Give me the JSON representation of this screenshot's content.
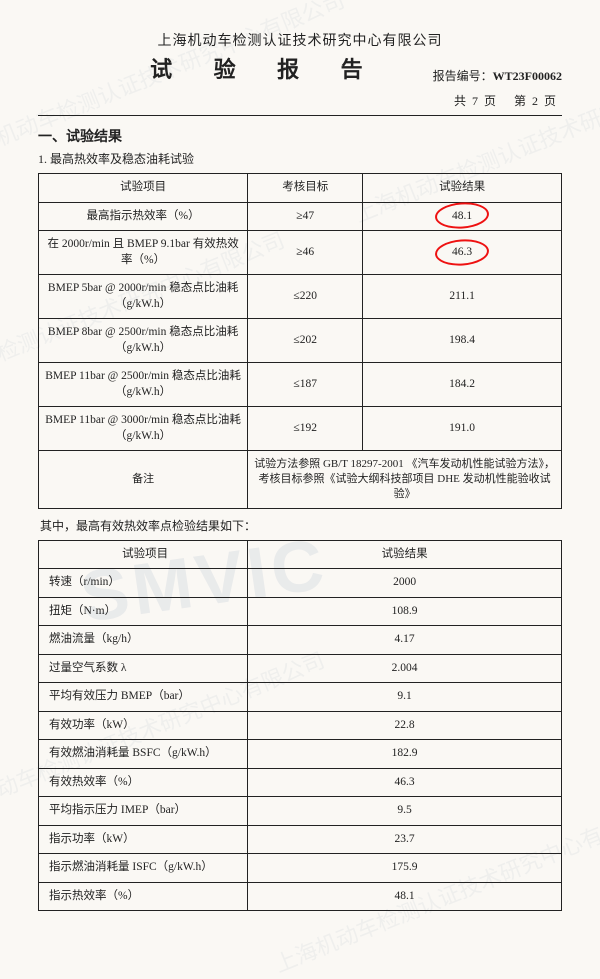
{
  "header": {
    "company": "上海机动车检测认证技术研究中心有限公司",
    "title": "试 验 报 告",
    "reportNoLabel": "报告编号：",
    "reportNo": "WT23F00062",
    "pageTotalPrefix": "共",
    "pageTotal": "7",
    "pageTotalSuffix": "页",
    "pageCurPrefix": "第",
    "pageCur": "2",
    "pageCurSuffix": "页"
  },
  "section": {
    "title": "一、试验结果",
    "sub1": "1. 最高热效率及稳态油耗试验",
    "midNote": "其中，最高有效热效率点检验结果如下："
  },
  "table1": {
    "headers": {
      "c0": "试验项目",
      "c1": "考核目标",
      "c2": "试验结果"
    },
    "rows": [
      {
        "c0": "最高指示热效率（%）",
        "c1": "≥47",
        "c2": "48.1",
        "circled": true
      },
      {
        "c0": "在 2000r/min 且 BMEP 9.1bar 有效热效率（%）",
        "c1": "≥46",
        "c2": "46.3",
        "circled": true
      },
      {
        "c0": "BMEP 5bar @ 2000r/min 稳态点比油耗（g/kW.h）",
        "c1": "≤220",
        "c2": "211.1"
      },
      {
        "c0": "BMEP 8bar @ 2500r/min 稳态点比油耗（g/kW.h）",
        "c1": "≤202",
        "c2": "198.4"
      },
      {
        "c0": "BMEP 11bar @ 2500r/min 稳态点比油耗（g/kW.h）",
        "c1": "≤187",
        "c2": "184.2"
      },
      {
        "c0": "BMEP 11bar @ 3000r/min 稳态点比油耗（g/kW.h）",
        "c1": "≤192",
        "c2": "191.0"
      }
    ],
    "footer": {
      "label": "备注",
      "text": "试验方法参照 GB/T 18297-2001 《汽车发动机性能试验方法》，考核目标参照《试验大纲科技部项目 DHE 发动机性能验收试验》"
    }
  },
  "table2": {
    "headers": {
      "c0": "试验项目",
      "c1": "试验结果"
    },
    "rows": [
      {
        "c0": "转速（r/min）",
        "c1": "2000"
      },
      {
        "c0": "扭矩（N·m）",
        "c1": "108.9"
      },
      {
        "c0": "燃油流量（kg/h）",
        "c1": "4.17"
      },
      {
        "c0": "过量空气系数 λ",
        "c1": "2.004"
      },
      {
        "c0": "平均有效压力 BMEP（bar）",
        "c1": "9.1"
      },
      {
        "c0": "有效功率（kW）",
        "c1": "22.8"
      },
      {
        "c0": "有效燃油消耗量 BSFC（g/kW.h）",
        "c1": "182.9"
      },
      {
        "c0": "有效热效率（%）",
        "c1": "46.3"
      },
      {
        "c0": "平均指示压力 IMEP（bar）",
        "c1": "9.5"
      },
      {
        "c0": "指示功率（kW）",
        "c1": "23.7"
      },
      {
        "c0": "指示燃油消耗量 ISFC（g/kW.h）",
        "c1": "175.9"
      },
      {
        "c0": "指示热效率（%）",
        "c1": "48.1"
      }
    ]
  },
  "style": {
    "background": "#faf8f4",
    "border_color": "#222222",
    "text_color": "#222222",
    "highlight_circle_color": "#ee1111",
    "watermark_text": "SMVIC",
    "watermark_color_rgba": "rgba(120,150,180,0.13)",
    "watermark_cn": "上海机动车检测认证技术研究中心有限公司"
  }
}
